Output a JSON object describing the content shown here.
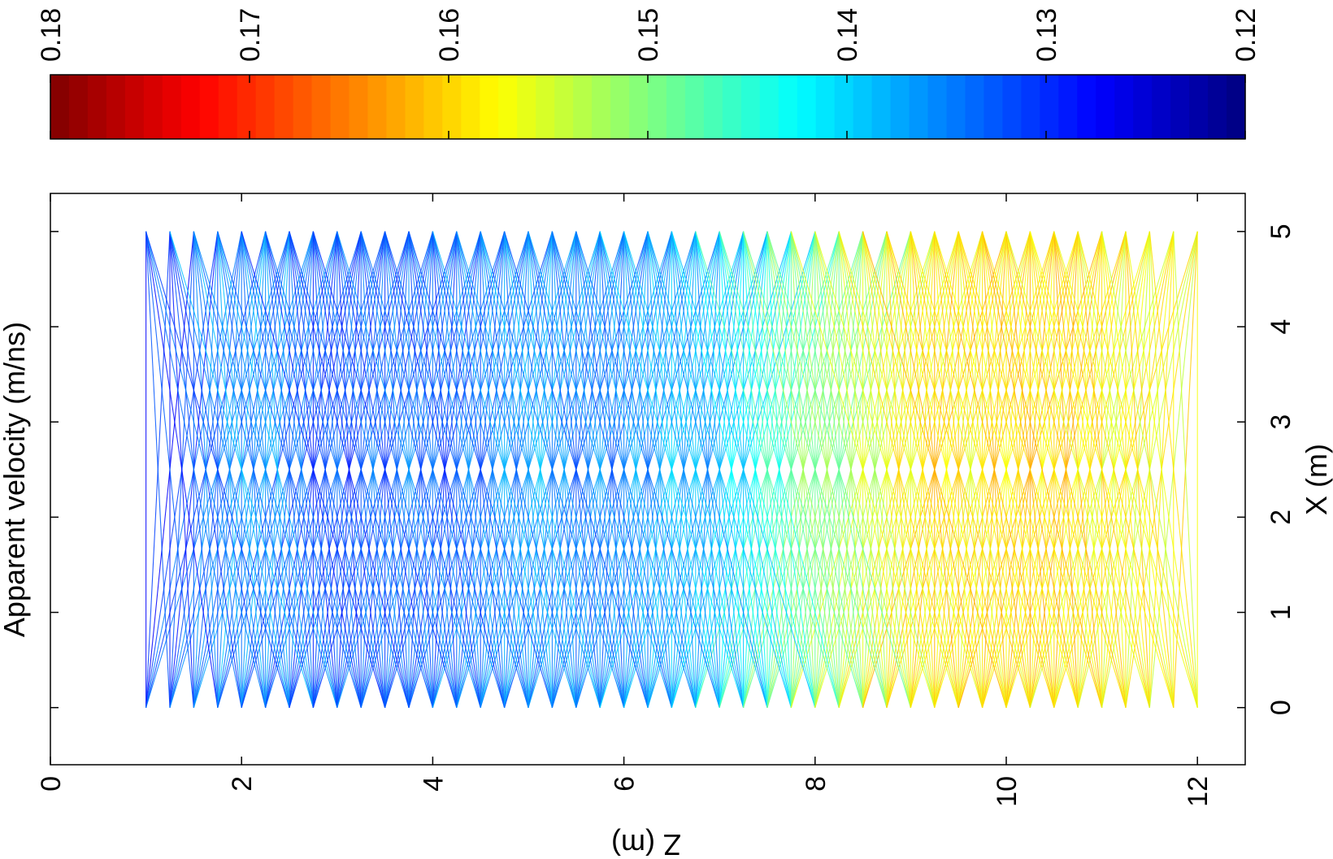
{
  "chart_data": {
    "type": "line",
    "title": "Apparent velocity (m/ns)",
    "xlabel": "Z (m)",
    "ylabel": "X (m)",
    "xlim": [
      0,
      12.5
    ],
    "ylim": [
      -0.6,
      5.4
    ],
    "x_ticks": [
      0,
      2,
      4,
      6,
      8,
      10,
      12
    ],
    "y_ticks": [
      0,
      1,
      2,
      3,
      4,
      5
    ],
    "grid": false,
    "colormap": "jet",
    "colorbar": {
      "min": 0.12,
      "max": 0.18,
      "ticks": [
        "0.18",
        "0.17",
        "0.16",
        "0.15",
        "0.14",
        "0.13",
        "0.12"
      ],
      "orientation": "horizontal, high values left"
    },
    "rays": {
      "source_x_positions": [
        0,
        5
      ],
      "receiver_x_positions": [
        0,
        5
      ],
      "z_start": 1.0,
      "z_end": 12.0,
      "z_step": 0.25,
      "max_z_offset": 1.5,
      "description": "straight ray paths between boreholes at X=0 and X=5, colored by apparent velocity"
    },
    "velocity_profile": [
      {
        "z": 1.0,
        "v": 0.128
      },
      {
        "z": 2.0,
        "v": 0.136
      },
      {
        "z": 3.0,
        "v": 0.132
      },
      {
        "z": 4.0,
        "v": 0.133
      },
      {
        "z": 5.0,
        "v": 0.136
      },
      {
        "z": 6.0,
        "v": 0.135
      },
      {
        "z": 7.0,
        "v": 0.139
      },
      {
        "z": 8.0,
        "v": 0.15
      },
      {
        "z": 9.0,
        "v": 0.158
      },
      {
        "z": 10.0,
        "v": 0.16
      },
      {
        "z": 11.0,
        "v": 0.158
      },
      {
        "z": 12.0,
        "v": 0.157
      }
    ]
  }
}
